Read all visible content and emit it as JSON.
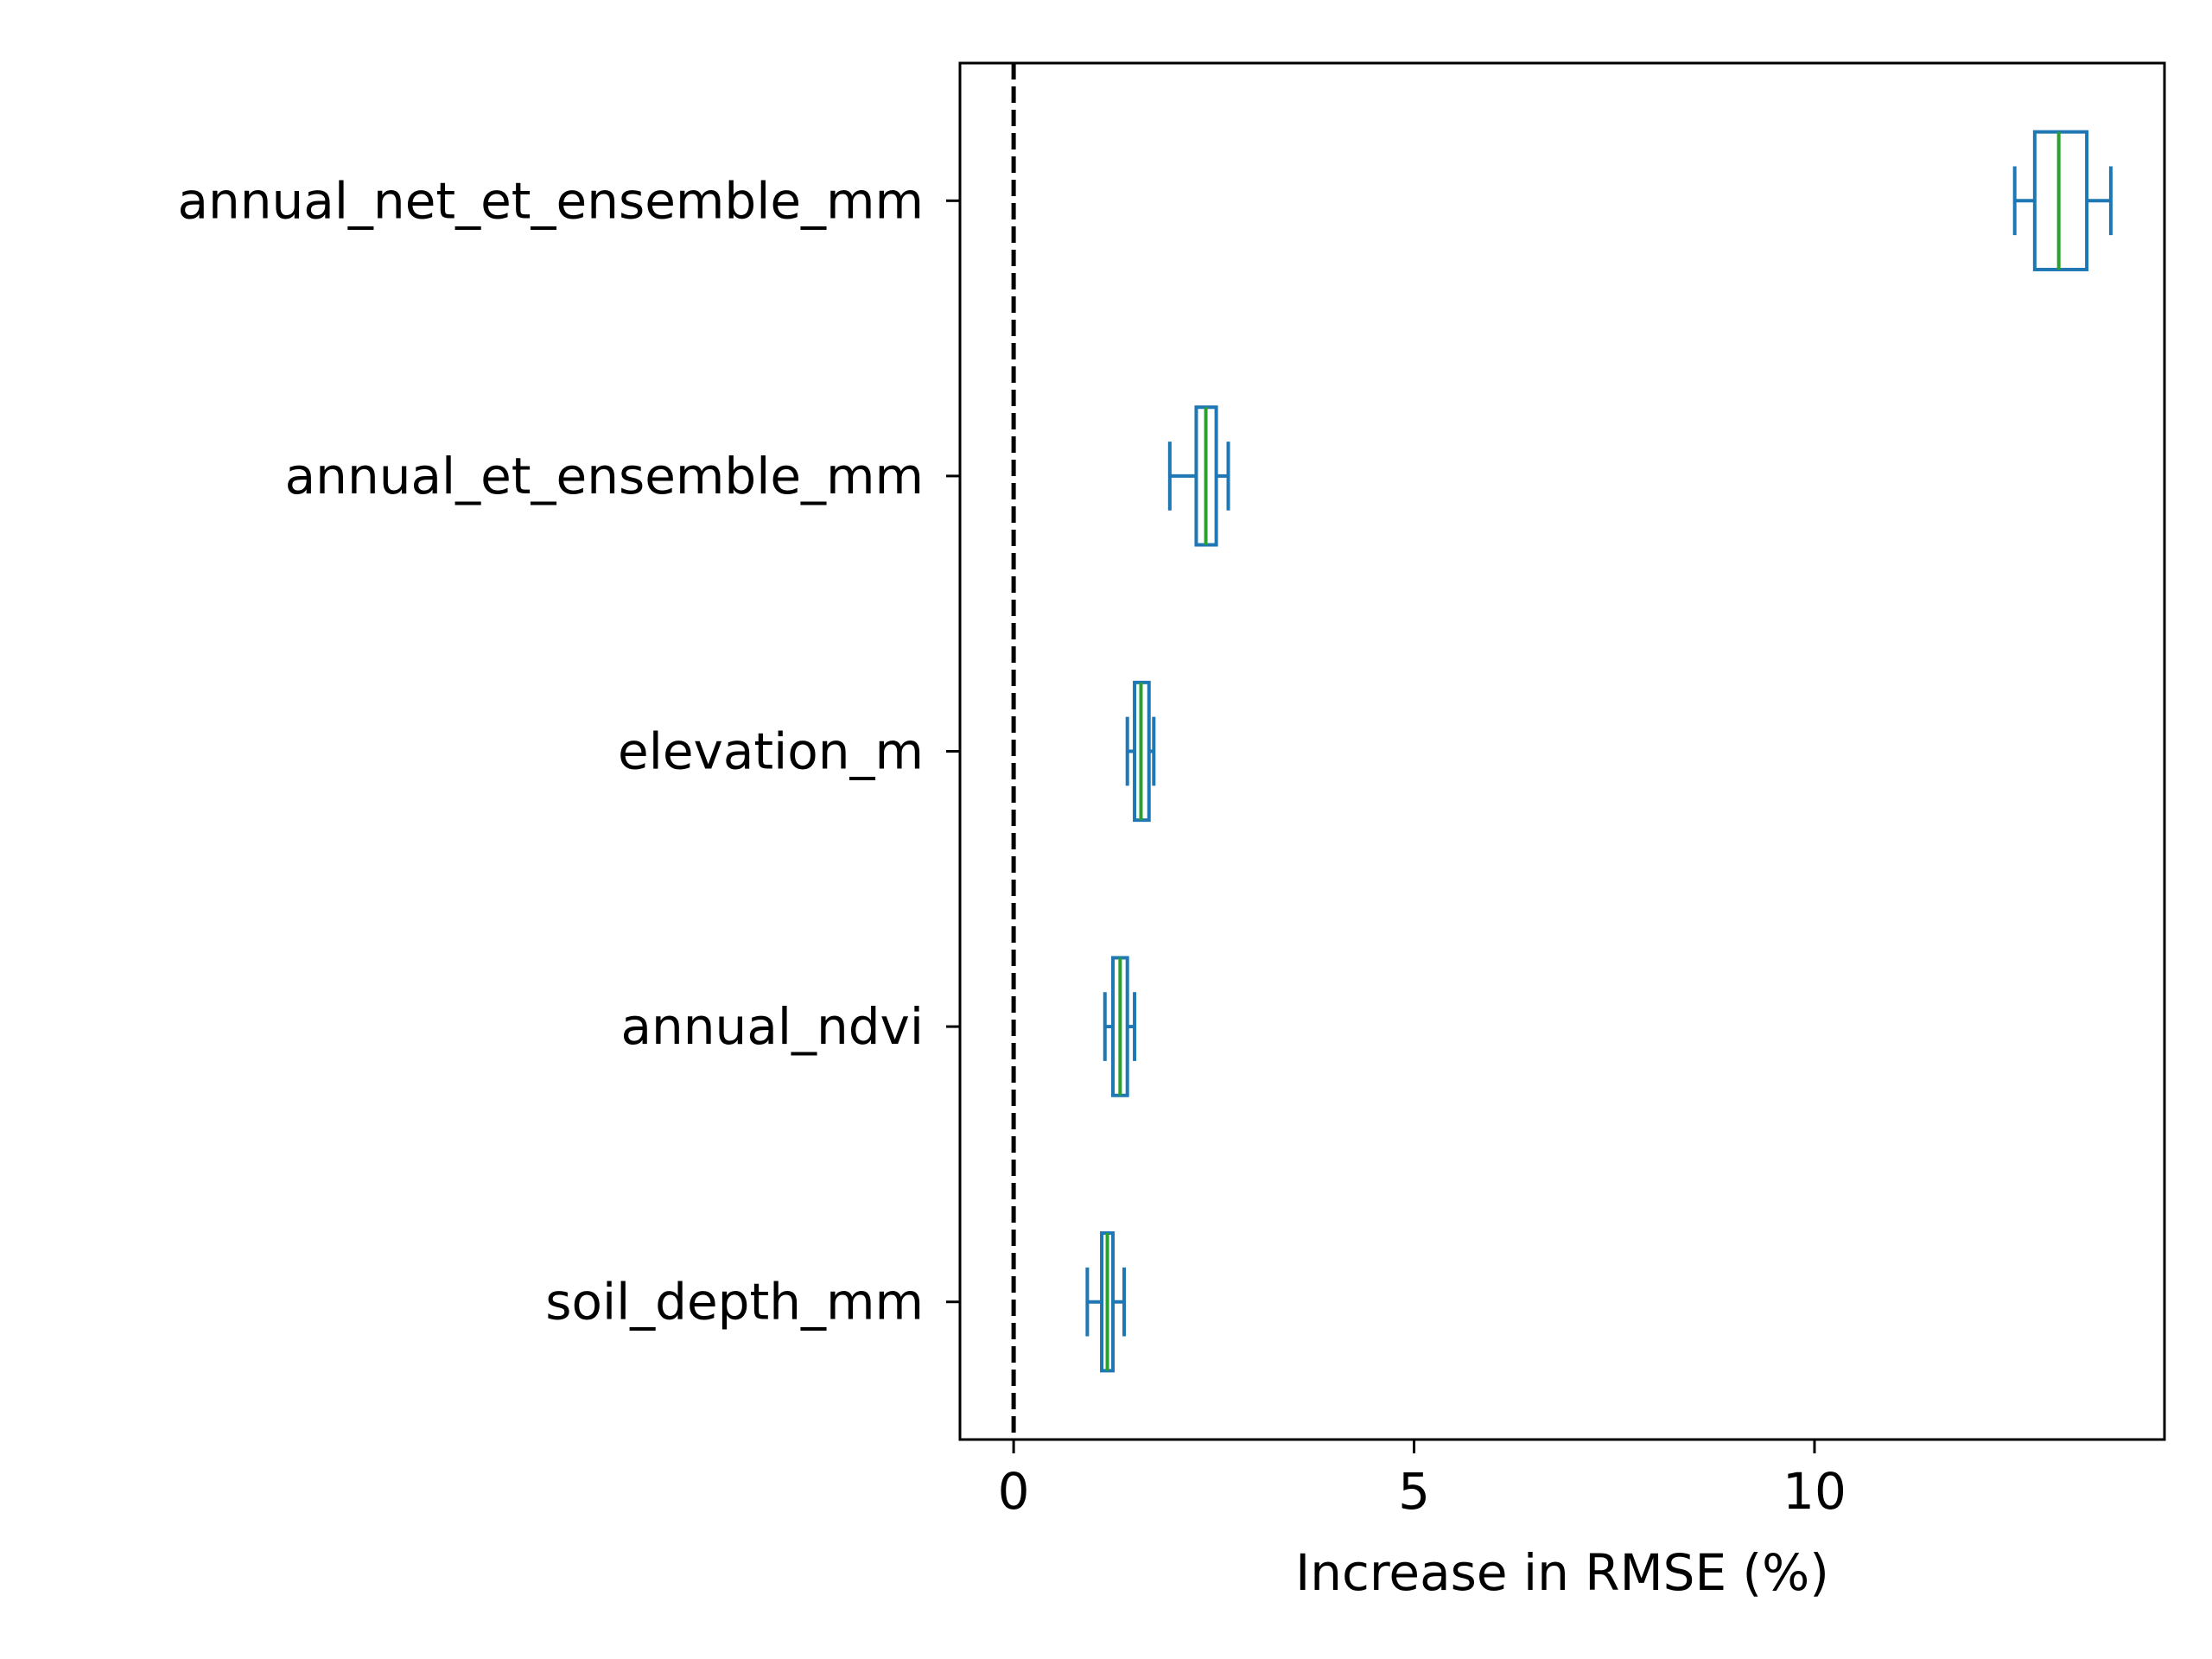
{
  "chart_data": {
    "type": "boxplot",
    "orientation": "horizontal",
    "xlabel": "Increase in RMSE (%)",
    "ylabel": "",
    "xlim": [
      -0.67,
      14.37
    ],
    "xticks": [
      0,
      5,
      10
    ],
    "reference_line": {
      "x": 0,
      "style": "dashed",
      "color": "#000000"
    },
    "colors": {
      "box": "#1f77b4",
      "median": "#2ca02c",
      "axes": "#000000"
    },
    "categories": [
      "annual_net_et_ensemble_mm",
      "annual_et_ensemble_mm",
      "elevation_m",
      "annual_ndvi",
      "soil_depth_mm"
    ],
    "boxes": [
      {
        "label": "annual_net_et_ensemble_mm",
        "whisker_low": 12.5,
        "q1": 12.75,
        "median": 13.05,
        "q3": 13.4,
        "whisker_high": 13.7
      },
      {
        "label": "annual_et_ensemble_mm",
        "whisker_low": 1.95,
        "q1": 2.28,
        "median": 2.4,
        "q3": 2.53,
        "whisker_high": 2.68
      },
      {
        "label": "elevation_m",
        "whisker_low": 1.42,
        "q1": 1.51,
        "median": 1.59,
        "q3": 1.69,
        "whisker_high": 1.75
      },
      {
        "label": "annual_ndvi",
        "whisker_low": 1.14,
        "q1": 1.24,
        "median": 1.33,
        "q3": 1.42,
        "whisker_high": 1.51
      },
      {
        "label": "soil_depth_mm",
        "whisker_low": 0.92,
        "q1": 1.1,
        "median": 1.17,
        "q3": 1.24,
        "whisker_high": 1.38
      }
    ]
  }
}
